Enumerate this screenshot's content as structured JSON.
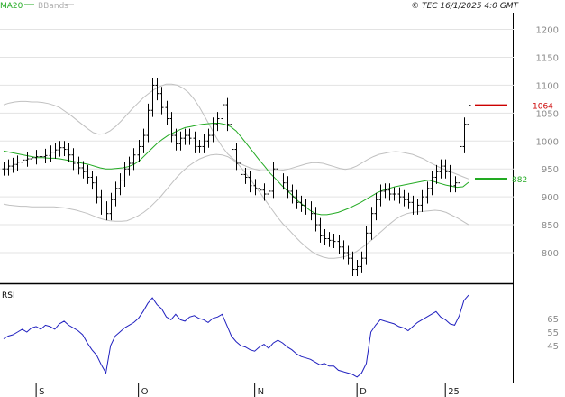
{
  "header": {
    "legend": [
      {
        "label": "MA20",
        "color": "#22aa22"
      },
      {
        "label": "BBands",
        "color": "#b0b0b0"
      }
    ],
    "timestamp": "© TEC 16/1/2025 4:0 GMT"
  },
  "chart_data": [
    {
      "type": "candlestick",
      "panel": "price",
      "ylim": [
        745,
        1230
      ],
      "y_ticks": [
        "1200",
        "1150",
        "1100",
        "1050",
        "1000",
        "950",
        "900",
        "850",
        "800"
      ],
      "y_tick_values": [
        1200,
        1150,
        1100,
        1050,
        1000,
        950,
        900,
        850,
        800
      ],
      "x_ticks": [
        "S",
        "O",
        "N",
        "D",
        "25"
      ],
      "x_tick_index": [
        7,
        29,
        54,
        76,
        95
      ],
      "series_names": {
        "ma": "MA20",
        "bands": "BBands"
      },
      "close": [
        950,
        955,
        958,
        962,
        966,
        968,
        970,
        972,
        972,
        974,
        980,
        984,
        988,
        985,
        975,
        960,
        952,
        945,
        935,
        925,
        900,
        880,
        870,
        895,
        915,
        930,
        950,
        960,
        975,
        990,
        1010,
        1055,
        1100,
        1085,
        1060,
        1040,
        1010,
        995,
        1005,
        1010,
        1005,
        990,
        990,
        1000,
        1010,
        1030,
        1040,
        1065,
        1030,
        985,
        960,
        940,
        935,
        920,
        915,
        912,
        905,
        910,
        950,
        930,
        925,
        910,
        900,
        890,
        885,
        880,
        870,
        850,
        830,
        825,
        822,
        820,
        810,
        800,
        790,
        770,
        775,
        790,
        835,
        870,
        895,
        910,
        912,
        905,
        905,
        900,
        895,
        890,
        880,
        885,
        900,
        915,
        935,
        945,
        955,
        945,
        920,
        925,
        990,
        1030,
        1064
      ],
      "ma20": [
        982,
        980,
        978,
        976,
        974,
        972,
        970,
        970,
        969,
        969,
        968,
        966,
        964,
        962,
        960,
        958,
        955,
        952,
        950,
        950,
        951,
        952,
        954,
        958,
        965,
        975,
        985,
        995,
        1003,
        1010,
        1015,
        1020,
        1024,
        1026,
        1028,
        1030,
        1031,
        1032,
        1032,
        1030,
        1026,
        1018,
        1006,
        993,
        980,
        967,
        955,
        942,
        932,
        921,
        911,
        902,
        892,
        884,
        876,
        870,
        868,
        868,
        870,
        872,
        876,
        880,
        885,
        890,
        896,
        902,
        908,
        912,
        915,
        918,
        920,
        922,
        924,
        926,
        928,
        930,
        927,
        924,
        921,
        919,
        917,
        918,
        926
      ],
      "bb_upper": [
        1065,
        1068,
        1070,
        1071,
        1071,
        1070,
        1070,
        1069,
        1067,
        1064,
        1060,
        1053,
        1046,
        1038,
        1030,
        1022,
        1015,
        1012,
        1013,
        1018,
        1026,
        1036,
        1047,
        1058,
        1068,
        1078,
        1086,
        1093,
        1098,
        1102,
        1102,
        1100,
        1095,
        1087,
        1075,
        1060,
        1042,
        1024,
        1006,
        990,
        977,
        968,
        961,
        956,
        952,
        949,
        947,
        947,
        947,
        947,
        948,
        950,
        953,
        956,
        959,
        961,
        961,
        960,
        957,
        954,
        951,
        949,
        951,
        955,
        961,
        967,
        972,
        976,
        978,
        980,
        981,
        980,
        978,
        976,
        972,
        968,
        962,
        957,
        952,
        948,
        944,
        940,
        936,
        932
      ],
      "bb_lower": [
        887,
        885,
        884,
        883,
        883,
        882,
        882,
        882,
        882,
        882,
        881,
        880,
        878,
        876,
        873,
        870,
        866,
        862,
        859,
        857,
        856,
        856,
        857,
        861,
        866,
        872,
        880,
        890,
        900,
        912,
        924,
        936,
        946,
        955,
        962,
        968,
        972,
        975,
        976,
        975,
        972,
        966,
        957,
        945,
        932,
        918,
        904,
        890,
        876,
        862,
        850,
        840,
        829,
        819,
        810,
        802,
        796,
        792,
        790,
        790,
        791,
        793,
        797,
        802,
        809,
        817,
        825,
        834,
        843,
        852,
        860,
        866,
        870,
        872,
        873,
        874,
        875,
        876,
        875,
        872,
        867,
        862,
        856,
        850
      ]
    },
    {
      "type": "line",
      "panel": "rsi",
      "title": "RSI",
      "ylim": [
        18,
        88
      ],
      "y_ticks": [
        "65",
        "55",
        "45"
      ],
      "y_tick_values": [
        65,
        55,
        45
      ],
      "values": [
        50,
        52,
        53,
        55,
        57,
        55,
        58,
        59,
        57,
        60,
        59,
        57,
        61,
        63,
        60,
        58,
        56,
        53,
        47,
        42,
        38,
        31,
        25,
        45,
        52,
        55,
        58,
        60,
        62,
        65,
        70,
        76,
        80,
        75,
        72,
        66,
        64,
        68,
        64,
        63,
        66,
        67,
        65,
        64,
        62,
        65,
        66,
        68,
        60,
        52,
        48,
        45,
        44,
        42,
        41,
        44,
        46,
        43,
        47,
        49,
        47,
        44,
        42,
        39,
        37,
        36,
        35,
        33,
        31,
        32,
        30,
        30,
        27,
        26,
        25,
        24,
        22,
        25,
        32,
        55,
        60,
        64,
        63,
        62,
        61,
        59,
        58,
        56,
        59,
        62,
        64,
        66,
        68,
        70,
        66,
        64,
        61,
        60,
        67,
        78,
        82
      ]
    }
  ]
}
